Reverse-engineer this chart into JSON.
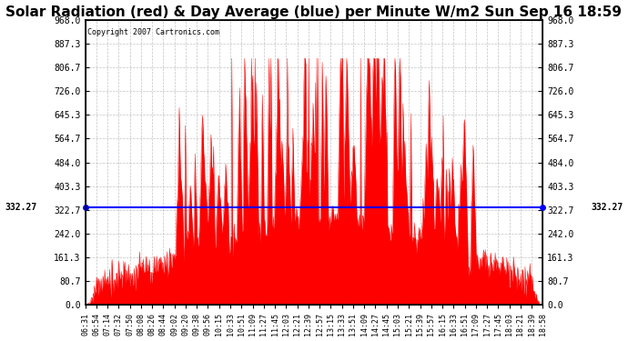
{
  "title": "Solar Radiation (red) & Day Average (blue) per Minute W/m2 Sun Sep 16 18:59",
  "copyright_text": "Copyright 2007 Cartronics.com",
  "day_average": 332.27,
  "y_max": 968.0,
  "y_min": 0.0,
  "y_ticks": [
    0.0,
    80.7,
    161.3,
    242.0,
    322.7,
    403.3,
    484.0,
    564.7,
    645.3,
    726.0,
    806.7,
    887.3,
    968.0
  ],
  "background_color": "#ffffff",
  "fill_color": "#ff0000",
  "avg_line_color": "#0000ff",
  "grid_color": "#aaaaaa",
  "title_fontsize": 11,
  "avg_label_color": "#000000",
  "x_tick_labels": [
    "06:31",
    "06:54",
    "07:14",
    "07:32",
    "07:50",
    "08:08",
    "08:26",
    "08:44",
    "09:02",
    "09:20",
    "09:38",
    "09:56",
    "10:15",
    "10:33",
    "10:51",
    "11:09",
    "11:27",
    "11:45",
    "12:03",
    "12:21",
    "12:39",
    "12:57",
    "13:15",
    "13:33",
    "13:51",
    "14:09",
    "14:27",
    "14:45",
    "15:03",
    "15:21",
    "15:39",
    "15:57",
    "16:15",
    "16:33",
    "16:51",
    "17:09",
    "17:27",
    "17:45",
    "18:03",
    "18:21",
    "18:39",
    "18:58"
  ],
  "figsize": [
    6.9,
    3.75
  ],
  "dpi": 100
}
